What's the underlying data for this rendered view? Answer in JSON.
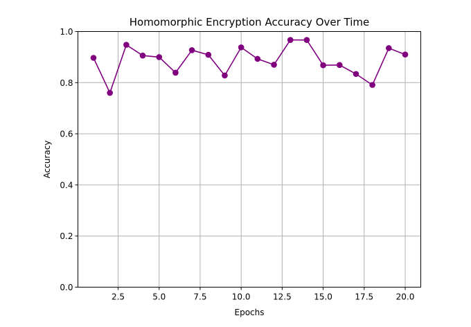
{
  "chart_data": {
    "type": "line",
    "title": "Homomorphic Encryption Accuracy Over Time",
    "xlabel": "Epochs",
    "ylabel": "Accuracy",
    "x": [
      1,
      2,
      3,
      4,
      5,
      6,
      7,
      8,
      9,
      10,
      11,
      12,
      13,
      14,
      15,
      16,
      17,
      18,
      19,
      20
    ],
    "series": [
      {
        "values": [
          0.897,
          0.76,
          0.948,
          0.906,
          0.9,
          0.839,
          0.927,
          0.909,
          0.828,
          0.938,
          0.893,
          0.87,
          0.967,
          0.967,
          0.868,
          0.869,
          0.834,
          0.791,
          0.935,
          0.91
        ],
        "color": "#800080",
        "marker": "circle"
      }
    ],
    "xlim": [
      0.05,
      20.95
    ],
    "ylim": [
      0,
      1.0
    ],
    "xticks": [
      2.5,
      5.0,
      7.5,
      10.0,
      12.5,
      15.0,
      17.5,
      20.0
    ],
    "xtick_labels": [
      "2.5",
      "5.0",
      "7.5",
      "10.0",
      "12.5",
      "15.0",
      "17.5",
      "20.0"
    ],
    "yticks": [
      0.0,
      0.2,
      0.4,
      0.6,
      0.8,
      1.0
    ],
    "ytick_labels": [
      "0.0",
      "0.2",
      "0.4",
      "0.6",
      "0.8",
      "1.0"
    ],
    "grid": true,
    "legend": "none"
  }
}
